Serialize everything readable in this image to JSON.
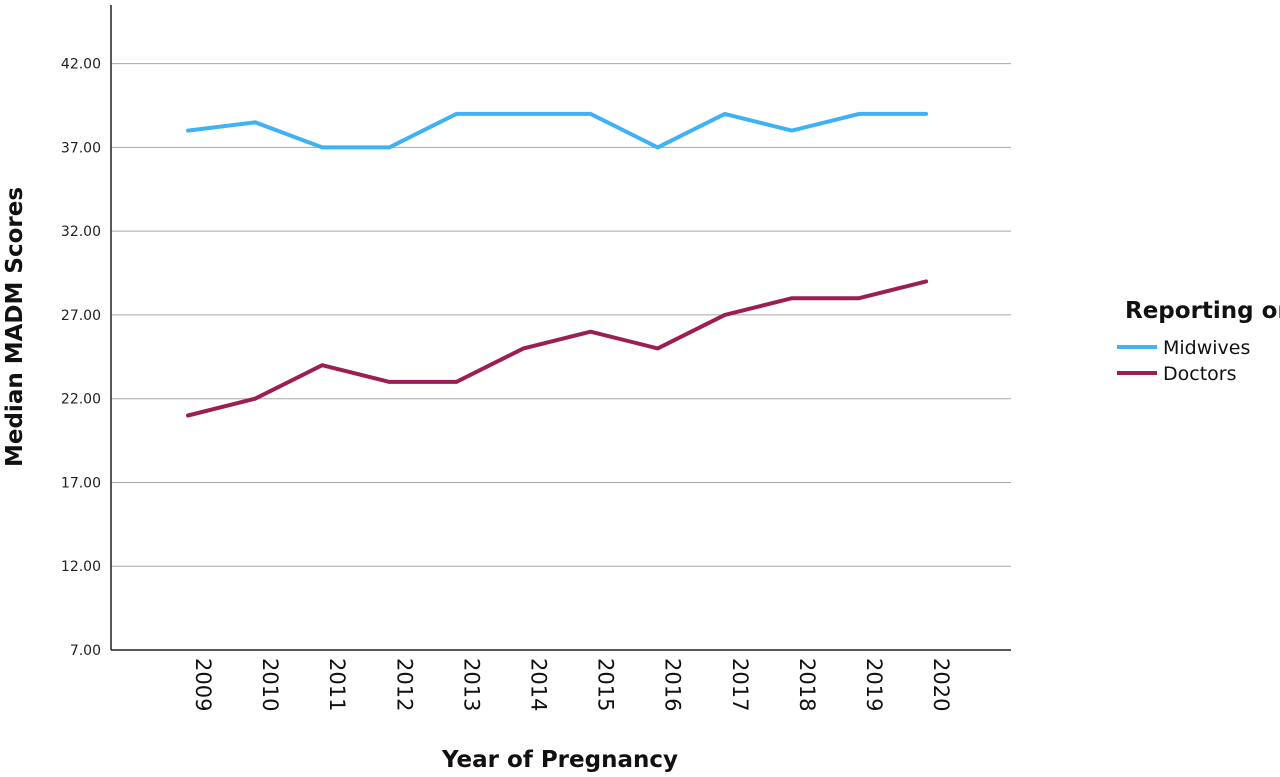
{
  "chart_data": {
    "type": "line",
    "x": [
      "2009",
      "2010",
      "2011",
      "2012",
      "2013",
      "2014",
      "2015",
      "2016",
      "2017",
      "2018",
      "2019",
      "2020"
    ],
    "series": [
      {
        "name": "Midwives",
        "color": "#3fb1f5",
        "values": [
          38,
          38.5,
          37,
          37,
          39,
          39,
          39,
          37,
          39,
          38,
          39,
          39
        ]
      },
      {
        "name": "Doctors",
        "color": "#9b1f55",
        "values": [
          21,
          22,
          24,
          23,
          23,
          25,
          26,
          25,
          27,
          28,
          28,
          29
        ]
      }
    ],
    "title": "",
    "xlabel": "Year of Pregnancy",
    "ylabel": "Median MADM Scores",
    "yticks": [
      "7.00",
      "12.00",
      "17.00",
      "22.00",
      "27.00",
      "32.00",
      "37.00",
      "42.00"
    ],
    "ylim": [
      7,
      45.5
    ],
    "grid": true,
    "legend": {
      "title": "Reporting on:",
      "position": "right"
    }
  }
}
